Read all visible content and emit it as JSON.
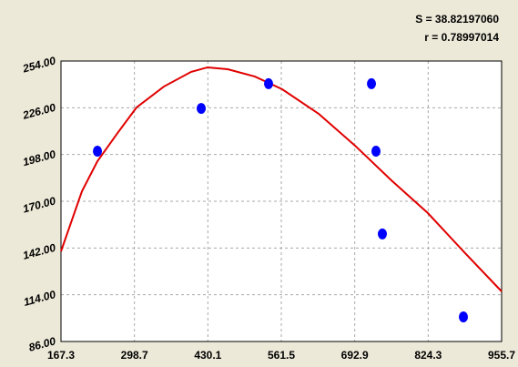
{
  "chart_data": {
    "type": "scatter",
    "annotations": [
      "S = 38.82197060",
      "r = 0.78997014"
    ],
    "xlim": [
      167.3,
      955.7
    ],
    "xticks": [
      167.3,
      298.7,
      430.1,
      561.5,
      692.9,
      824.3,
      955.7
    ],
    "ylim": [
      86,
      254
    ],
    "yticks": [
      {
        "value": 86,
        "label": "86.00"
      },
      {
        "value": 114,
        "label": "114.00"
      },
      {
        "value": 142,
        "label": "142.00"
      },
      {
        "value": 170,
        "label": "170.00"
      },
      {
        "value": 198,
        "label": "198.00"
      },
      {
        "value": 226,
        "label": "226.00"
      },
      {
        "value": 254,
        "label": "254.00"
      }
    ],
    "grid": true,
    "series": [
      {
        "color": "#0000ff",
        "x": [
          232.5,
          418.2,
          538.7,
          722.8,
          730.9,
          742.3,
          887.3
        ],
        "values": [
          200.0,
          225.6,
          240.4,
          240.4,
          200.0,
          150.4,
          100.7
        ]
      },
      {
        "color": "#e00000",
        "x": [
          167.3,
          204.8,
          232.5,
          269.9,
          302.5,
          351.4,
          400.2,
          429.6,
          465.4,
          514.3,
          563.1,
          628.3,
          693.5,
          758.6,
          823.8,
          889.0,
          955.7
        ],
        "values": [
          140.0,
          176.0,
          194.0,
          211.5,
          226.2,
          238.7,
          247.5,
          250.2,
          249.1,
          244.7,
          237.1,
          222.4,
          203.3,
          182.5,
          162.9,
          139.4,
          116.0
        ]
      }
    ]
  }
}
